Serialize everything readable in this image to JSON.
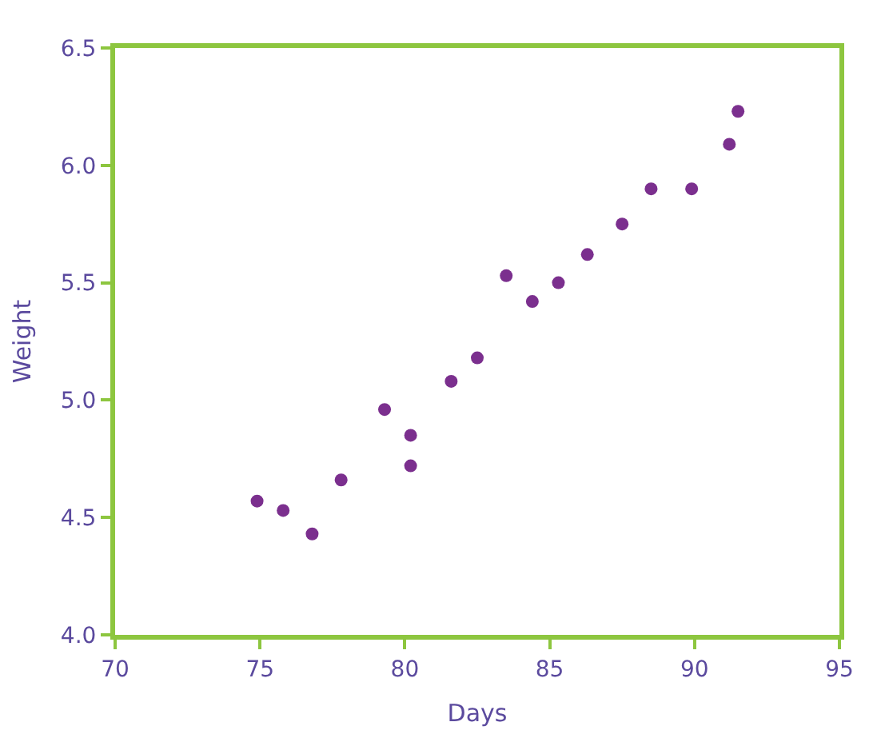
{
  "chart_data": {
    "type": "scatter",
    "xlabel": "Days",
    "ylabel": "Weight",
    "x": [
      74.9,
      75.8,
      76.8,
      77.8,
      79.3,
      80.2,
      80.2,
      81.6,
      82.5,
      83.5,
      84.4,
      85.3,
      86.3,
      87.5,
      88.5,
      89.9,
      91.2,
      91.5
    ],
    "series": [
      {
        "color": "#7b2f8e",
        "values": [
          4.57,
          4.53,
          4.43,
          4.66,
          4.96,
          4.85,
          4.72,
          5.08,
          5.18,
          5.53,
          5.42,
          5.5,
          5.62,
          5.75,
          5.9,
          5.9,
          6.09,
          6.23
        ]
      }
    ],
    "xlim": [
      70,
      95
    ],
    "xticks": [
      70,
      75,
      80,
      85,
      90,
      95
    ],
    "ylim": [
      4.0,
      6.5
    ],
    "yticks": [
      {
        "value": 4.0,
        "label": "4.0"
      },
      {
        "value": 4.5,
        "label": "4.5"
      },
      {
        "value": 5.0,
        "label": "5.0"
      },
      {
        "value": 5.5,
        "label": "5.5"
      },
      {
        "value": 6.0,
        "label": "6.0"
      },
      {
        "value": 6.5,
        "label": "6.5"
      }
    ],
    "marker": "circle"
  }
}
